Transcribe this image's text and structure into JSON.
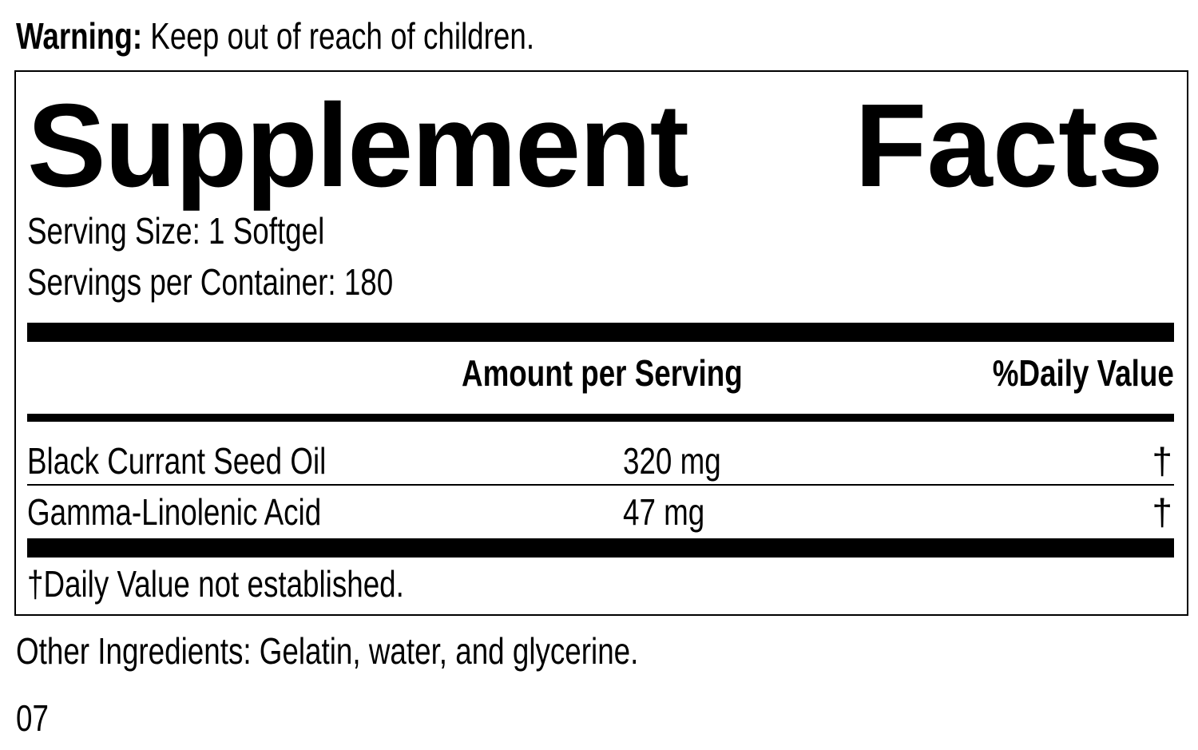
{
  "warning": {
    "label": "Warning:",
    "text": " Keep out of reach of children."
  },
  "title": {
    "part1": "Supplement",
    "part2": "Facts"
  },
  "serving_size": "Serving Size: 1 Softgel",
  "servings_per_container": "Servings per Container: 180",
  "headers": {
    "amount": "Amount per Serving",
    "dv": "%Daily Value"
  },
  "rows": [
    {
      "name": "Black Currant Seed Oil",
      "amount": "320 mg",
      "dv": "†"
    },
    {
      "name": "Gamma-Linolenic Acid",
      "amount": "47 mg",
      "dv": "†"
    }
  ],
  "footnote": "†Daily Value not established.",
  "other_ingredients": "Other Ingredients: Gelatin, water, and glycerine.",
  "code": "07"
}
